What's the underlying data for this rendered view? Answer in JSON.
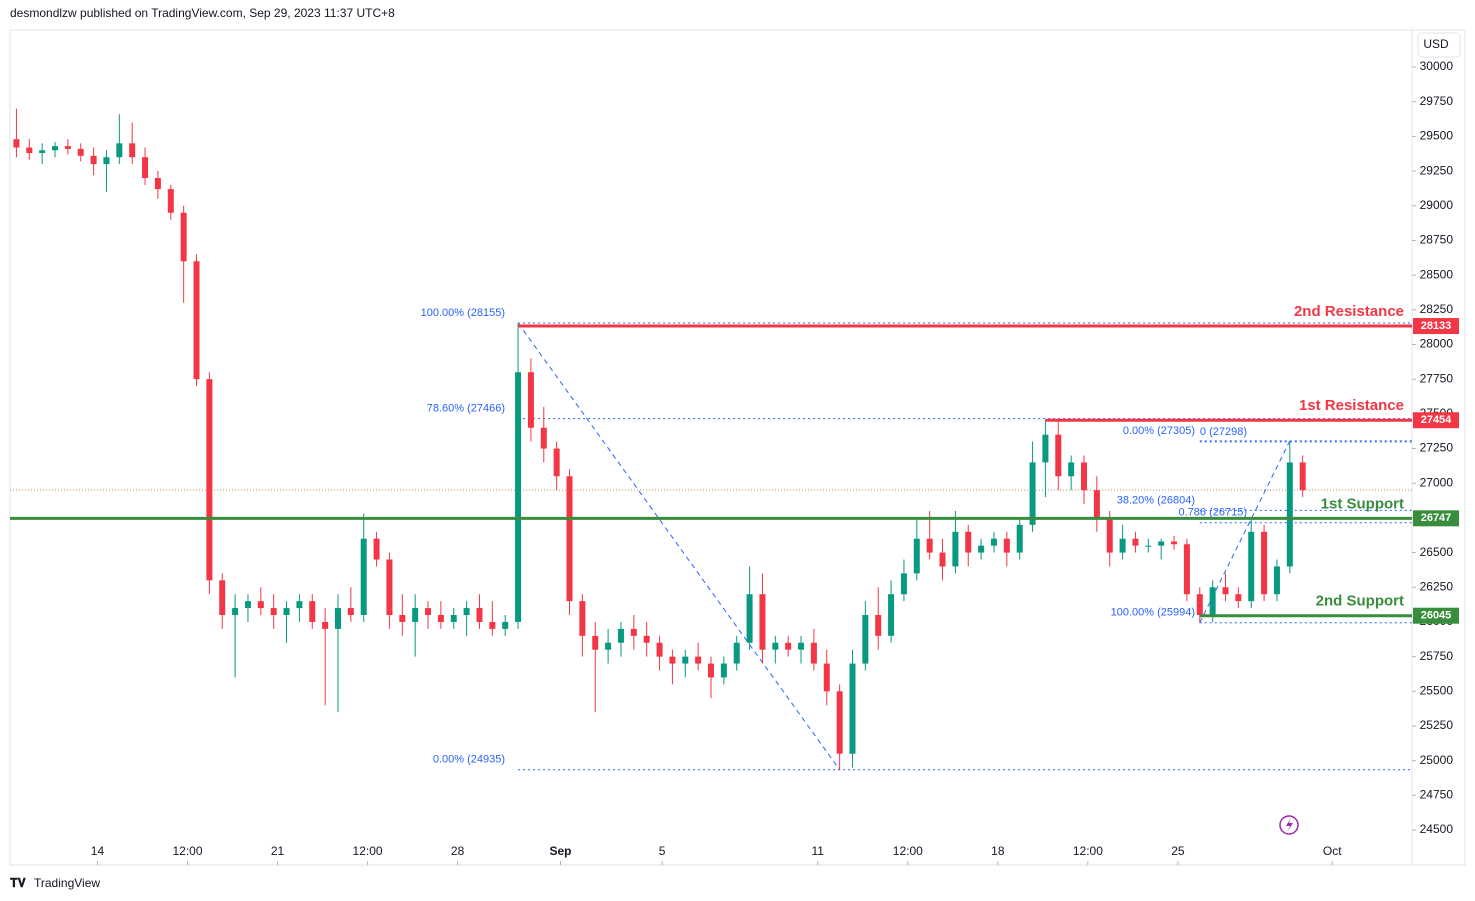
{
  "header": "desmondlzw published on TradingView.com, Sep 29, 2023 11:37 UTC+8",
  "footer": "TradingView",
  "chart_data": {
    "type": "candlestick",
    "currency": "USD",
    "up_color": "#089981",
    "down_color": "#f23645",
    "xlim": [
      0,
      109
    ],
    "xticks": [
      {
        "value": 6.8,
        "label": "14"
      },
      {
        "value": 13.8,
        "label": "12:00"
      },
      {
        "value": 20.8,
        "label": "21"
      },
      {
        "value": 27.8,
        "label": "12:00"
      },
      {
        "value": 34.8,
        "label": "28"
      },
      {
        "value": 42.8,
        "label": "Sep"
      },
      {
        "value": 50.7,
        "label": "5"
      },
      {
        "value": 62.8,
        "label": "11"
      },
      {
        "value": 69.8,
        "label": "12:00"
      },
      {
        "value": 76.8,
        "label": "18"
      },
      {
        "value": 83.8,
        "label": "12:00"
      },
      {
        "value": 90.8,
        "label": "25"
      },
      {
        "value": 102.8,
        "label": "Oct"
      }
    ],
    "ylim": [
      24248,
      30267
    ],
    "yticks": [
      24500,
      24750,
      25000,
      25250,
      25500,
      25750,
      26000,
      26250,
      26500,
      26750,
      27000,
      27250,
      27500,
      27750,
      28000,
      28250,
      28500,
      28750,
      29000,
      29250,
      29500,
      29750,
      30000
    ],
    "candles": {
      "open": [
        29480,
        29420,
        29380,
        29400,
        29430,
        29410,
        29360,
        29300,
        29350,
        29450,
        29350,
        29200,
        29120,
        28950,
        28600,
        27750,
        26300,
        26050,
        26100,
        26150,
        26100,
        26050,
        26100,
        26150,
        26000,
        25950,
        26100,
        26050,
        26600,
        26450,
        26050,
        26000,
        26100,
        26050,
        26000,
        26050,
        26100,
        26000,
        25950,
        26000,
        27800,
        27400,
        27250,
        27050,
        26150,
        25900,
        25800,
        25850,
        25950,
        25900,
        25850,
        25750,
        25700,
        25750,
        25700,
        25600,
        25700,
        25850,
        26200,
        25800,
        25850,
        25800,
        25850,
        25700,
        25500,
        25050,
        25700,
        26050,
        25900,
        26200,
        26350,
        26600,
        26500,
        26400,
        26650,
        26500,
        26550,
        26600,
        26500,
        26700,
        27150,
        27350,
        27050,
        27150,
        26950,
        26750,
        26500,
        26600,
        26550,
        26550,
        26580,
        26560,
        26200,
        26050,
        26250,
        26200,
        26150,
        26650,
        26200,
        26400,
        27150
      ],
      "high": [
        29700,
        29480,
        29450,
        29460,
        29480,
        29450,
        29420,
        29400,
        29660,
        29600,
        29420,
        29250,
        29150,
        29000,
        28650,
        27800,
        26350,
        26200,
        26200,
        26250,
        26200,
        26150,
        26200,
        26200,
        26100,
        26200,
        26250,
        26780,
        26650,
        26500,
        26200,
        26200,
        26150,
        26150,
        26100,
        26150,
        26200,
        26150,
        26050,
        28155,
        27900,
        27550,
        27300,
        27100,
        26200,
        26000,
        25950,
        26000,
        26050,
        26000,
        25900,
        25800,
        25800,
        25850,
        25750,
        25750,
        25900,
        26400,
        26350,
        25900,
        25900,
        25900,
        25950,
        25800,
        25550,
        25800,
        26150,
        26250,
        26300,
        26450,
        26750,
        26800,
        26600,
        26800,
        26700,
        26600,
        26650,
        26650,
        26750,
        27300,
        27454,
        27454,
        27200,
        27200,
        27050,
        26800,
        26700,
        26650,
        26600,
        26600,
        26620,
        26600,
        26250,
        26300,
        26350,
        26250,
        26750,
        26700,
        26450,
        27298,
        27200
      ],
      "low": [
        29350,
        29330,
        29300,
        29350,
        29370,
        29320,
        29220,
        29100,
        29300,
        29300,
        29150,
        29050,
        28900,
        28300,
        27700,
        26200,
        25950,
        25600,
        26000,
        26050,
        25950,
        25850,
        26000,
        25950,
        25400,
        25350,
        26000,
        26000,
        26400,
        25950,
        25900,
        25750,
        25950,
        25950,
        25950,
        25900,
        25950,
        25900,
        25900,
        25950,
        27300,
        27150,
        26950,
        26050,
        25750,
        25350,
        25700,
        25750,
        25800,
        25750,
        25650,
        25550,
        25600,
        25650,
        25450,
        25550,
        25650,
        25800,
        25700,
        25700,
        25750,
        25700,
        25650,
        25400,
        24935,
        24950,
        25650,
        25800,
        25850,
        26150,
        26300,
        26450,
        26300,
        26350,
        26400,
        26450,
        26500,
        26400,
        26450,
        26650,
        26900,
        26950,
        26950,
        26850,
        26650,
        26400,
        26450,
        26500,
        26500,
        26450,
        26520,
        26150,
        25994,
        26000,
        26150,
        26100,
        26100,
        26150,
        26150,
        26350,
        26900
      ],
      "close": [
        29420,
        29380,
        29400,
        29430,
        29410,
        29360,
        29300,
        29350,
        29450,
        29350,
        29200,
        29120,
        28950,
        28600,
        27750,
        26300,
        26050,
        26100,
        26150,
        26100,
        26050,
        26100,
        26150,
        26000,
        25950,
        26100,
        26050,
        26600,
        26450,
        26050,
        26000,
        26100,
        26050,
        26000,
        26050,
        26100,
        26000,
        25950,
        26000,
        27800,
        27400,
        27250,
        27050,
        26150,
        25900,
        25800,
        25850,
        25950,
        25900,
        25850,
        25750,
        25700,
        25750,
        25700,
        25600,
        25700,
        25850,
        26200,
        25800,
        25850,
        25800,
        25850,
        25700,
        25500,
        25050,
        25700,
        26050,
        25900,
        26200,
        26350,
        26600,
        26500,
        26400,
        26650,
        26500,
        26550,
        26600,
        26500,
        26700,
        27150,
        27350,
        27050,
        27150,
        26950,
        26750,
        26500,
        26600,
        26550,
        26550,
        26580,
        26560,
        26200,
        26050,
        26250,
        26200,
        26150,
        26650,
        26200,
        26400,
        27150,
        26950
      ]
    },
    "levels": [
      {
        "label": "2nd Resistance",
        "value": 28133,
        "color": "#f23645"
      },
      {
        "label": "1st Resistance",
        "value": 27454,
        "color": "#f23645"
      },
      {
        "label": "1st Support",
        "value": 26747,
        "color": "#388e3c"
      },
      {
        "label": "2nd Support",
        "value": 26045,
        "color": "#388e3c"
      }
    ],
    "fib_left": [
      {
        "label": "100.00% (28155)",
        "value": 28155
      },
      {
        "label": "78.60% (27466)",
        "value": 27466
      },
      {
        "label": "0.00% (24935)",
        "value": 24935
      }
    ],
    "fib_right": [
      {
        "label": "0.00% (27305)",
        "value": 27305
      },
      {
        "label": "38.20% (26804)",
        "value": 26804
      },
      {
        "label": "100.00% (25994)",
        "value": 25994
      }
    ],
    "fib_ext": [
      {
        "label": "0 (27298)",
        "value": 27298
      },
      {
        "label": "0.786 (26715)",
        "value": 26715
      }
    ]
  }
}
